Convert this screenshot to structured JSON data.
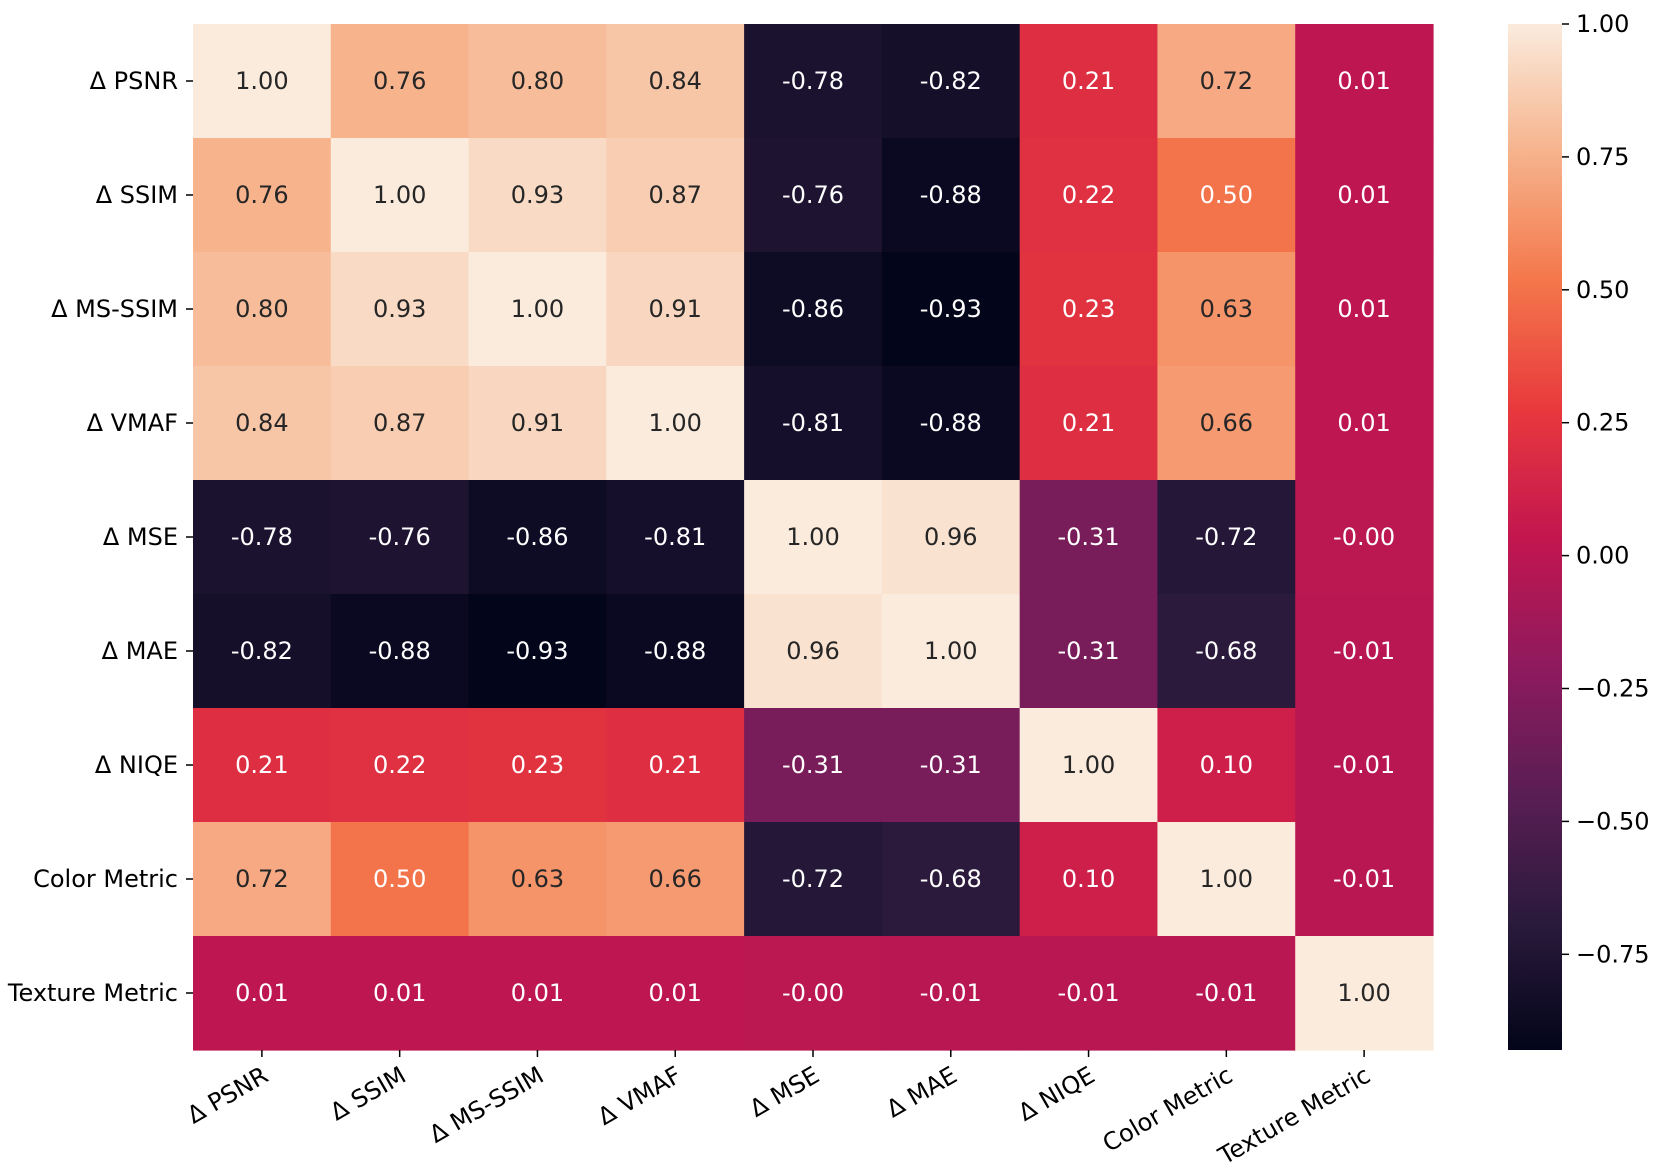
{
  "chart_data": {
    "type": "heatmap",
    "title": "",
    "xlabel": "",
    "ylabel": "",
    "row_labels": [
      "Δ PSNR",
      "Δ SSIM",
      "Δ MS-SSIM",
      "Δ VMAF",
      "Δ MSE",
      "Δ MAE",
      "Δ NIQE",
      "Color Metric",
      "Texture Metric"
    ],
    "col_labels": [
      "Δ PSNR",
      "Δ SSIM",
      "Δ MS-SSIM",
      "Δ VMAF",
      "Δ MSE",
      "Δ MAE",
      "Δ NIQE",
      "Color Metric",
      "Texture Metric"
    ],
    "values": [
      [
        1.0,
        0.76,
        0.8,
        0.84,
        -0.78,
        -0.82,
        0.21,
        0.72,
        0.01
      ],
      [
        0.76,
        1.0,
        0.93,
        0.87,
        -0.76,
        -0.88,
        0.22,
        0.5,
        0.01
      ],
      [
        0.8,
        0.93,
        1.0,
        0.91,
        -0.86,
        -0.93,
        0.23,
        0.63,
        0.01
      ],
      [
        0.84,
        0.87,
        0.91,
        1.0,
        -0.81,
        -0.88,
        0.21,
        0.66,
        0.01
      ],
      [
        -0.78,
        -0.76,
        -0.86,
        -0.81,
        1.0,
        0.96,
        -0.31,
        -0.72,
        -0.0
      ],
      [
        -0.82,
        -0.88,
        -0.93,
        -0.88,
        0.96,
        1.0,
        -0.31,
        -0.68,
        -0.01
      ],
      [
        0.21,
        0.22,
        0.23,
        0.21,
        -0.31,
        -0.31,
        1.0,
        0.1,
        -0.01
      ],
      [
        0.72,
        0.5,
        0.63,
        0.66,
        -0.72,
        -0.68,
        0.1,
        1.0,
        -0.01
      ],
      [
        0.01,
        0.01,
        0.01,
        0.01,
        -0.0,
        -0.01,
        -0.01,
        -0.01,
        1.0
      ]
    ],
    "annotations": [
      [
        "1.00",
        "0.76",
        "0.80",
        "0.84",
        "-0.78",
        "-0.82",
        "0.21",
        "0.72",
        "0.01"
      ],
      [
        "0.76",
        "1.00",
        "0.93",
        "0.87",
        "-0.76",
        "-0.88",
        "0.22",
        "0.50",
        "0.01"
      ],
      [
        "0.80",
        "0.93",
        "1.00",
        "0.91",
        "-0.86",
        "-0.93",
        "0.23",
        "0.63",
        "0.01"
      ],
      [
        "0.84",
        "0.87",
        "0.91",
        "1.00",
        "-0.81",
        "-0.88",
        "0.21",
        "0.66",
        "0.01"
      ],
      [
        "-0.78",
        "-0.76",
        "-0.86",
        "-0.81",
        "1.00",
        "0.96",
        "-0.31",
        "-0.72",
        "-0.00"
      ],
      [
        "-0.82",
        "-0.88",
        "-0.93",
        "-0.88",
        "0.96",
        "1.00",
        "-0.31",
        "-0.68",
        "-0.01"
      ],
      [
        "0.21",
        "0.22",
        "0.23",
        "0.21",
        "-0.31",
        "-0.31",
        "1.00",
        "0.10",
        "-0.01"
      ],
      [
        "0.72",
        "0.50",
        "0.63",
        "0.66",
        "-0.72",
        "-0.68",
        "0.10",
        "1.00",
        "-0.01"
      ],
      [
        "0.01",
        "0.01",
        "0.01",
        "0.01",
        "-0.00",
        "-0.01",
        "-0.01",
        "-0.01",
        "1.00"
      ]
    ],
    "colorscale": "rocket",
    "vmin": -0.93,
    "vmax": 1.0,
    "colorbar": {
      "ticks": [
        1.0,
        0.75,
        0.5,
        0.25,
        0.0,
        -0.25,
        -0.5,
        -0.75
      ],
      "tick_labels": [
        "1.00",
        "0.75",
        "0.50",
        "0.25",
        "0.00",
        "−0.25",
        "−0.50",
        "−0.75"
      ],
      "placement": "right"
    }
  }
}
